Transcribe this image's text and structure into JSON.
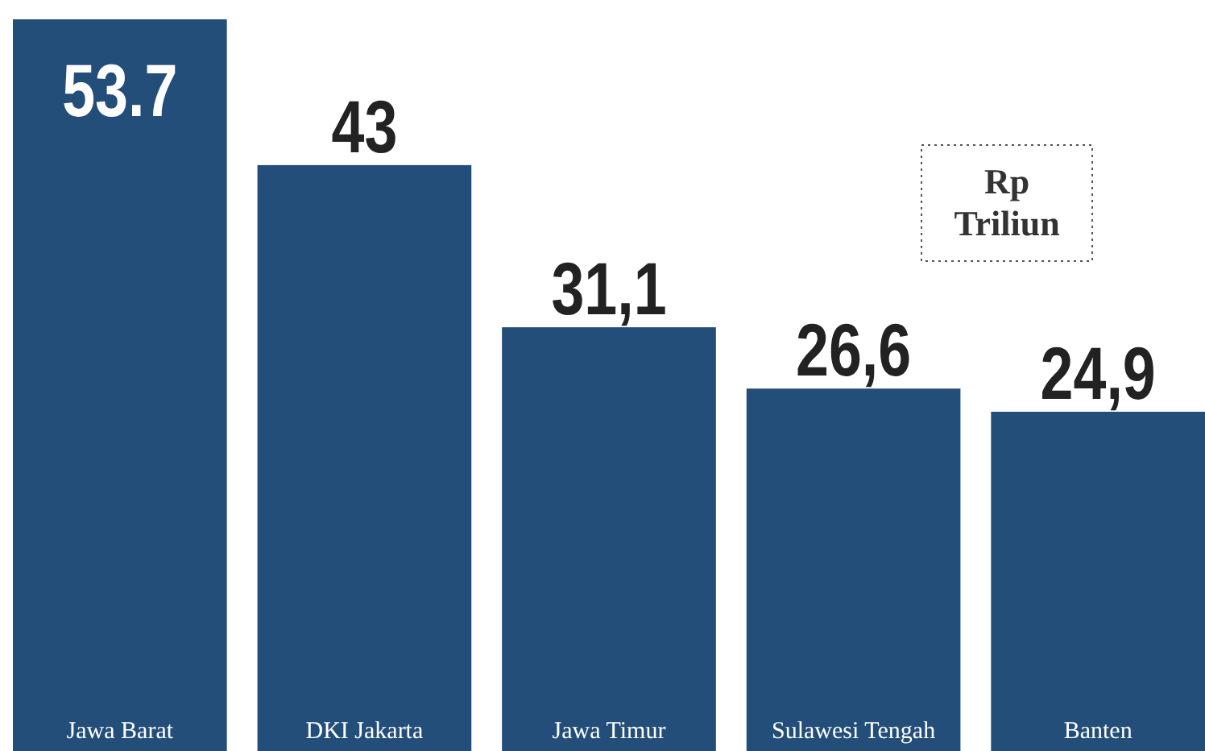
{
  "chart_data": {
    "type": "bar",
    "categories": [
      "Jawa Barat",
      "DKI Jakarta",
      "Jawa Timur",
      "Sulawesi Tengah",
      "Banten"
    ],
    "values": [
      53.7,
      43,
      31.1,
      26.6,
      24.9
    ],
    "value_labels": [
      "53.7",
      "43",
      "31,1",
      "26,6",
      "24,9"
    ],
    "color": "#234e79",
    "annotations": [
      "Rp Triliun"
    ]
  }
}
